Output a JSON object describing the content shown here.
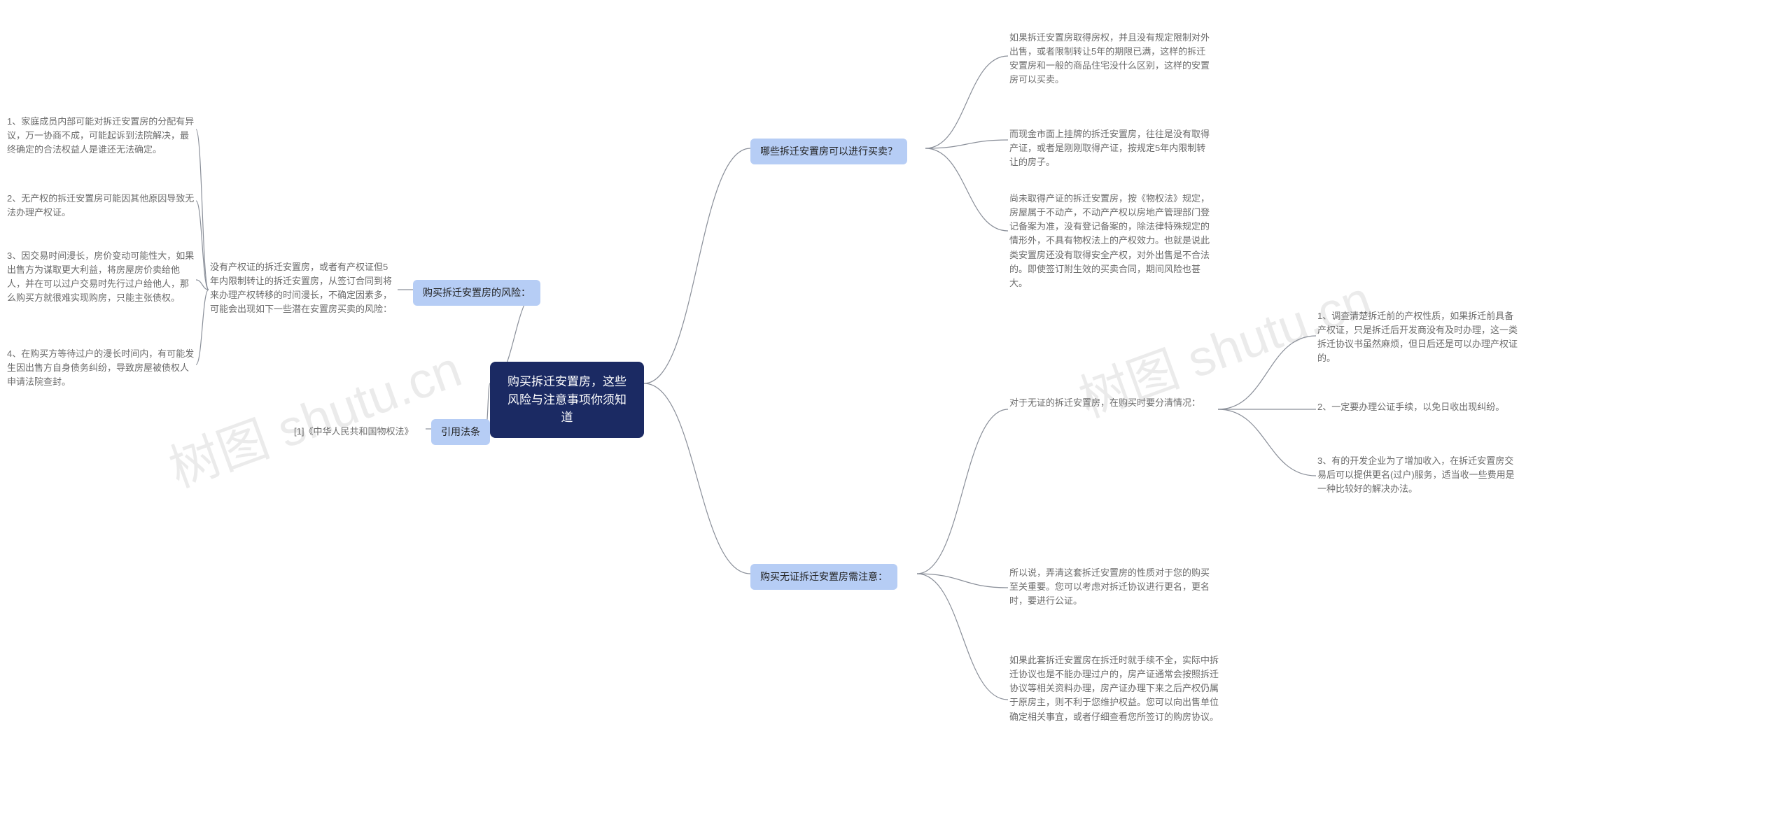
{
  "watermarks": {
    "wm1": "树图 shutu.cn",
    "wm2": "树图 shutu.cn"
  },
  "root": {
    "title": "购买拆迁安置房，这些风险与注意事项你须知道"
  },
  "left": {
    "risks": {
      "label": "购买拆迁安置房的风险：",
      "intro": "没有产权证的拆迁安置房，或者有产权证但5年内限制转让的拆迁安置房，从签订合同到将来办理产权转移的时间漫长，不确定因素多，可能会出现如下一些潜在安置房买卖的风险：",
      "items": {
        "i1": "1、家庭成员内部可能对拆迁安置房的分配有异议，万一协商不成，可能起诉到法院解决，最终确定的合法权益人是谁还无法确定。",
        "i2": "2、无产权的拆迁安置房可能因其他原因导致无法办理产权证。",
        "i3": "3、因交易时间漫长，房价变动可能性大，如果出售方为谋取更大利益，将房屋房价卖给他人，并在可以过户交易时先行过户给他人，那么购买方就很难实现购房，只能主张债权。",
        "i4": "4、在购买方等待过户的漫长时间内，有可能发生因出售方自身债务纠纷，导致房屋被债权人申请法院查封。"
      }
    },
    "law": {
      "label": "引用法条",
      "ref": "[1]《中华人民共和国物权法》"
    }
  },
  "right": {
    "which": {
      "label": "哪些拆迁安置房可以进行买卖？",
      "items": {
        "i1": "如果拆迁安置房取得房权，并且没有规定限制对外出售，或者限制转让5年的期限已满，这样的拆迁安置房和一般的商品住宅没什么区别，这样的安置房可以买卖。",
        "i2": "而现金市面上挂牌的拆迁安置房，往往是没有取得产证，或者是刚刚取得产证，按规定5年内限制转让的房子。",
        "i3": "尚未取得产证的拆迁安置房，按《物权法》规定，房屋属于不动产，不动产产权以房地产管理部门登记备案为准，没有登记备案的，除法律特殊规定的情形外，不具有物权法上的产权效力。也就是说此类安置房还没有取得安全产权，对外出售是不合法的。即使签订附生效的买卖合同，期间风险也甚大。"
      }
    },
    "noCert": {
      "label": "购买无证拆迁安置房需注意：",
      "sub": {
        "intro": "对于无证的拆迁安置房，在购买时要分清情况：",
        "items": {
          "i1": "1、调查清楚拆迁前的产权性质，如果拆迁前具备产权证，只是拆迁后开发商没有及时办理，这一类拆迁协议书虽然麻烦，但日后还是可以办理产权证的。",
          "i2": "2、一定要办理公证手续，以免日收出现纠纷。",
          "i3": "3、有的开发企业为了增加收入，在拆迁安置房交易后可以提供更名(过户)服务，适当收一些费用是一种比较好的解决办法。"
        }
      },
      "extra": {
        "e1": "所以说，弄清这套拆迁安置房的性质对于您的购买至关重要。您可以考虑对拆迁协议进行更名，更名时，要进行公证。",
        "e2": "如果此套拆迁安置房在拆迁时就手续不全，实际中拆迁协议也是不能办理过户的，房产证通常会按照拆迁协议等相关资料办理，房产证办理下来之后产权仍属于原房主，则不利于您维护权益。您可以向出售单位确定相关事宜，或者仔细查看您所签订的购房协议。"
      }
    }
  },
  "colors": {
    "root_bg": "#1b2a63",
    "branch_bg": "#b6cdf5",
    "connector": "#8a8f99",
    "text_gray": "#6b6b6b"
  }
}
